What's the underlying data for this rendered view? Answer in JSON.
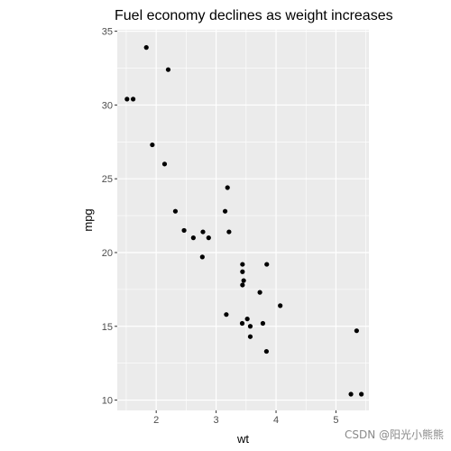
{
  "chart_data": {
    "type": "scatter",
    "title": "Fuel economy declines as weight increases",
    "xlabel": "wt",
    "ylabel": "mpg",
    "xlim": [
      1.35,
      5.55
    ],
    "ylim": [
      9.3,
      35.1
    ],
    "x_ticks": [
      2,
      3,
      4,
      5
    ],
    "y_ticks": [
      10,
      15,
      20,
      25,
      30,
      35
    ],
    "grid": true,
    "panel_color": "#ebebeb",
    "point_color": "#000000",
    "points": [
      {
        "x": 1.513,
        "y": 30.4
      },
      {
        "x": 1.615,
        "y": 30.4
      },
      {
        "x": 1.835,
        "y": 33.9
      },
      {
        "x": 1.935,
        "y": 27.3
      },
      {
        "x": 2.14,
        "y": 26.0
      },
      {
        "x": 2.2,
        "y": 32.4
      },
      {
        "x": 2.32,
        "y": 22.8
      },
      {
        "x": 2.465,
        "y": 21.5
      },
      {
        "x": 2.62,
        "y": 21.0
      },
      {
        "x": 2.77,
        "y": 19.7
      },
      {
        "x": 2.78,
        "y": 21.4
      },
      {
        "x": 2.875,
        "y": 21.0
      },
      {
        "x": 3.15,
        "y": 22.8
      },
      {
        "x": 3.17,
        "y": 15.8
      },
      {
        "x": 3.19,
        "y": 24.4
      },
      {
        "x": 3.215,
        "y": 21.4
      },
      {
        "x": 3.435,
        "y": 15.2
      },
      {
        "x": 3.44,
        "y": 17.8
      },
      {
        "x": 3.44,
        "y": 18.7
      },
      {
        "x": 3.44,
        "y": 19.2
      },
      {
        "x": 3.46,
        "y": 18.1
      },
      {
        "x": 3.52,
        "y": 15.5
      },
      {
        "x": 3.57,
        "y": 15.0
      },
      {
        "x": 3.57,
        "y": 14.3
      },
      {
        "x": 3.73,
        "y": 17.3
      },
      {
        "x": 3.78,
        "y": 15.2
      },
      {
        "x": 3.84,
        "y": 13.3
      },
      {
        "x": 3.845,
        "y": 19.2
      },
      {
        "x": 4.07,
        "y": 16.4
      },
      {
        "x": 5.25,
        "y": 10.4
      },
      {
        "x": 5.345,
        "y": 14.7
      },
      {
        "x": 5.424,
        "y": 10.4
      }
    ]
  },
  "watermark": "CSDN @阳光小熊熊"
}
